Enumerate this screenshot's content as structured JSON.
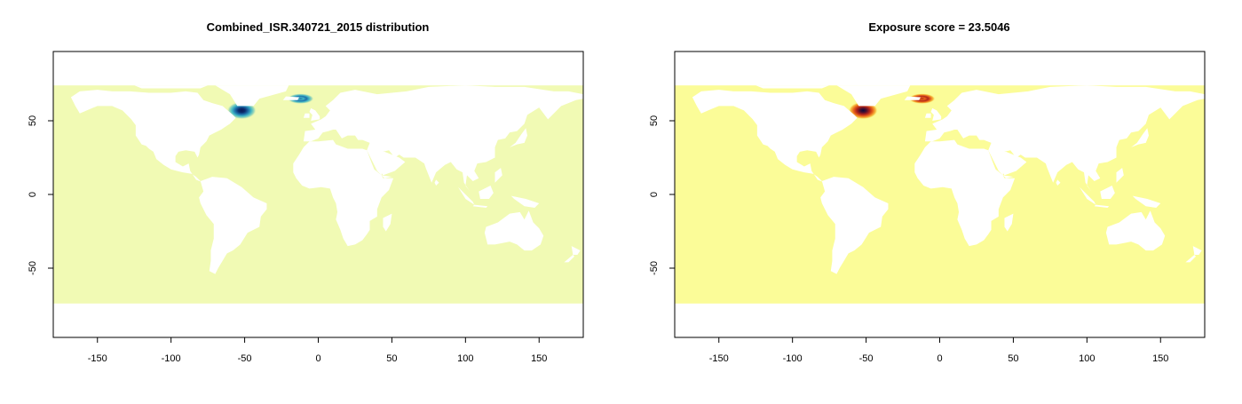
{
  "panels": [
    {
      "title": "Combined_ISR.340721_2015 distribution",
      "ocean_color": "#f1fab4",
      "hotspots": [
        {
          "lon": -52,
          "lat": 57,
          "intensity": 1.0
        },
        {
          "lon": -12,
          "lat": 65,
          "intensity": 0.7
        }
      ],
      "palette": [
        "#f1fab4",
        "#a8dcb6",
        "#41b6c4",
        "#1d6fa9",
        "#0b2a6b",
        "#081d58"
      ]
    },
    {
      "title": "Exposure score = 23.5046",
      "ocean_color": "#fbfc98",
      "hotspots": [
        {
          "lon": -52,
          "lat": 57,
          "intensity": 1.0
        },
        {
          "lon": -12,
          "lat": 65,
          "intensity": 0.7
        }
      ],
      "palette": [
        "#fbfc98",
        "#f7c244",
        "#e8641a",
        "#b0241a",
        "#4a1030",
        "#0a0a3a"
      ]
    }
  ],
  "x_axis": {
    "ticks": [
      -150,
      -100,
      -50,
      0,
      50,
      100,
      150
    ],
    "xlim": [
      -180,
      180
    ]
  },
  "y_axis": {
    "ticks": [
      -50,
      0,
      50
    ],
    "ylim": [
      -97,
      97
    ]
  },
  "data_extent": {
    "lat_min": -74,
    "lat_max": 74
  }
}
